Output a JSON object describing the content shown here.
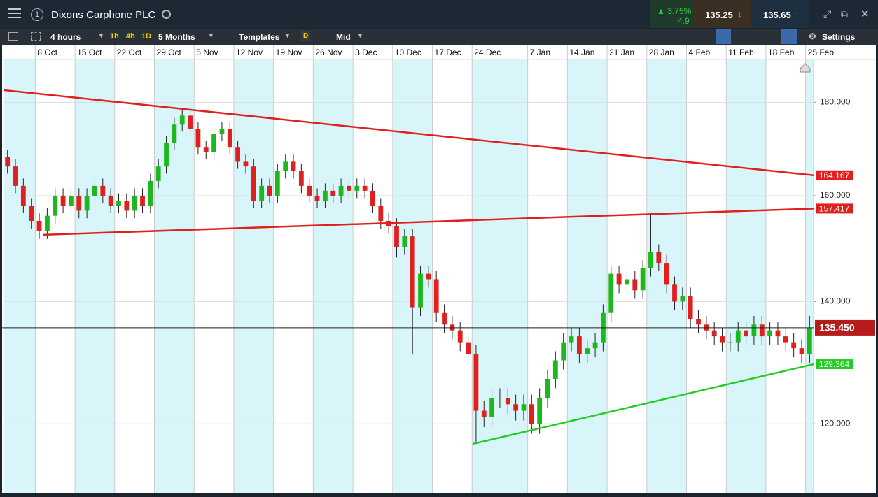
{
  "header": {
    "alert_count": "1",
    "title": "Dixons Carphone PLC",
    "change_percent": "3.75%",
    "change": "4.9",
    "sell": "135.25",
    "buy": "135.65"
  },
  "toolbar": {
    "interval": "4 hours",
    "quick_intervals": [
      "1h",
      "4h",
      "1D"
    ],
    "range": "5 Months",
    "templates": "Templates",
    "daily": "D",
    "price_type": "Mid",
    "settings": "Settings"
  },
  "chart_data": {
    "type": "candlestick",
    "log": true,
    "grid": true,
    "up_color": "#1db81d",
    "down_color": "#e01f1f",
    "categories": [
      null,
      null,
      null,
      null,
      "8 Oct",
      null,
      null,
      null,
      null,
      "15 Oct",
      null,
      null,
      null,
      null,
      "22 Oct",
      null,
      null,
      null,
      null,
      "29 Oct",
      null,
      null,
      null,
      null,
      "5 Nov",
      null,
      null,
      null,
      null,
      "12 Nov",
      null,
      null,
      null,
      null,
      "19 Nov",
      null,
      null,
      null,
      null,
      "26 Nov",
      null,
      null,
      null,
      null,
      "3 Dec",
      null,
      null,
      null,
      null,
      "10 Dec",
      null,
      null,
      null,
      null,
      "17 Dec",
      null,
      null,
      null,
      null,
      "24 Dec",
      null,
      null,
      null,
      null,
      null,
      null,
      "7 Jan",
      null,
      null,
      null,
      null,
      "14 Jan",
      null,
      null,
      null,
      null,
      "21 Jan",
      null,
      null,
      null,
      null,
      "28 Jan",
      null,
      null,
      null,
      null,
      "4 Feb",
      null,
      null,
      null,
      null,
      "11 Feb",
      null,
      null,
      null,
      null,
      "18 Feb",
      null,
      null,
      null,
      null,
      "25 Feb"
    ],
    "open": [
      168,
      166,
      162,
      158,
      155,
      153,
      156,
      160,
      158,
      160,
      157,
      160,
      162,
      160,
      158,
      159,
      157,
      160,
      158,
      163,
      166,
      171,
      175,
      177,
      174,
      170,
      169,
      173,
      174,
      170,
      167,
      166,
      159,
      162,
      160,
      165,
      167,
      165,
      162,
      160,
      159,
      161,
      160,
      162,
      161,
      162,
      161,
      158,
      155,
      154,
      150,
      152,
      139,
      145,
      144,
      138,
      136,
      135,
      133,
      131,
      122,
      121,
      124,
      124,
      123,
      122,
      123,
      120,
      124,
      127,
      130,
      133,
      134,
      131,
      132,
      133,
      138,
      145,
      143,
      144,
      142,
      146,
      149,
      147,
      143,
      140,
      141,
      137,
      136,
      135,
      134,
      133,
      133,
      135,
      134,
      136,
      134,
      135,
      134,
      133,
      132,
      131
    ],
    "high": [
      169.5,
      167.5,
      163.5,
      159.5,
      156.5,
      157.5,
      161.5,
      161.5,
      161.5,
      161.5,
      161.5,
      163.5,
      163.5,
      161.5,
      160.5,
      160.5,
      161.5,
      161.5,
      164.5,
      167.5,
      172.5,
      176.5,
      178.5,
      178.5,
      175.5,
      171.5,
      174.5,
      175.5,
      175.5,
      171.5,
      168.5,
      167.5,
      163.5,
      163.5,
      166.5,
      168.5,
      168.5,
      166.5,
      163.5,
      161.5,
      162.5,
      162.5,
      163.5,
      163.5,
      163.5,
      163.5,
      162.5,
      159.5,
      156.5,
      155.5,
      153.5,
      153.5,
      146.5,
      146.5,
      145.5,
      139.5,
      137.5,
      136.5,
      134.5,
      132.5,
      123.5,
      125.5,
      125.5,
      125.5,
      124.5,
      124.5,
      124.5,
      125.5,
      128.5,
      131.5,
      134.5,
      135.5,
      135.5,
      133.5,
      134.5,
      139.5,
      146.5,
      146.5,
      145.5,
      145.5,
      147.5,
      156.5,
      150.5,
      148.5,
      144.5,
      142.5,
      142.5,
      138.5,
      137.5,
      136.5,
      135.5,
      134.5,
      136.5,
      136.5,
      137.5,
      137.5,
      136.5,
      136.5,
      135.5,
      134.5,
      133.5,
      137.5
    ],
    "low": [
      164.5,
      160.5,
      156.5,
      153.5,
      151.5,
      151.5,
      154.5,
      156.5,
      156.5,
      155.5,
      155.5,
      158.5,
      158.5,
      156.5,
      156.5,
      155.5,
      155.5,
      156.5,
      156.5,
      161.5,
      164.5,
      169.5,
      173.5,
      172.5,
      168.5,
      167.5,
      167.5,
      171.5,
      168.5,
      165.5,
      164.5,
      157.5,
      157.5,
      158.5,
      158.5,
      163.5,
      163.5,
      160.5,
      158.5,
      157.5,
      157.5,
      158.5,
      158.5,
      159.5,
      159.5,
      159.5,
      156.5,
      153.5,
      152.5,
      148,
      148.5,
      131,
      137.5,
      142.5,
      136.5,
      134.5,
      133.5,
      131.5,
      129.5,
      117,
      119.5,
      119.5,
      122.5,
      121.5,
      120.5,
      120.5,
      118.5,
      118.5,
      122.5,
      125.5,
      128.5,
      131.5,
      129.5,
      129.5,
      130.5,
      131.5,
      136.5,
      141.5,
      141.5,
      140.5,
      140.5,
      144.5,
      145.5,
      141.5,
      138.5,
      138.5,
      135.5,
      134.5,
      133.5,
      132.5,
      131.5,
      131.5,
      131.5,
      132.5,
      132.5,
      132.5,
      132.5,
      132.5,
      131.5,
      130.5,
      129.5,
      129.5
    ],
    "close": [
      166,
      162,
      158,
      155,
      153,
      156,
      160,
      158,
      160,
      157,
      160,
      162,
      160,
      158,
      159,
      157,
      160,
      158,
      163,
      166,
      171,
      175,
      177,
      174,
      170,
      169,
      173,
      174,
      170,
      167,
      166,
      159,
      162,
      160,
      165,
      167,
      165,
      162,
      160,
      159,
      161,
      160,
      162,
      161,
      162,
      161,
      158,
      155,
      154,
      150,
      152,
      139,
      145,
      144,
      138,
      136,
      135,
      133,
      131,
      122,
      121,
      124,
      124,
      123,
      122,
      123,
      120,
      124,
      127,
      130,
      133,
      134,
      131,
      132,
      133,
      138,
      145,
      143,
      144,
      142,
      146,
      149,
      147,
      143,
      140,
      141,
      137,
      136,
      135,
      134,
      133,
      133,
      135,
      134,
      136,
      134,
      135,
      134,
      133,
      132,
      131,
      135.45
    ],
    "ylim": [
      110,
      190
    ],
    "yticks": [
      {
        "value": 120,
        "label": "120.000"
      },
      {
        "value": 140,
        "label": "140.000"
      },
      {
        "value": 160,
        "label": "160.000"
      },
      {
        "value": 180,
        "label": "180.000"
      }
    ],
    "trendlines": [
      {
        "color": "#e01f1f",
        "start_x": 0,
        "start_y": 182.8,
        "end_x": 102,
        "end_y": 164.167,
        "label": "164.167"
      },
      {
        "color": "#e01f1f",
        "start_x": 5,
        "start_y": 152.3,
        "end_x": 102,
        "end_y": 157.417,
        "label": "157.417"
      },
      {
        "color": "#22cc22",
        "start_x": 59.1,
        "start_y": 117,
        "end_x": 102,
        "end_y": 129.364,
        "label": "129.364"
      }
    ],
    "last_price": 135.45,
    "last_price_label": "135.450",
    "last_price_color": "#b71c1c"
  }
}
